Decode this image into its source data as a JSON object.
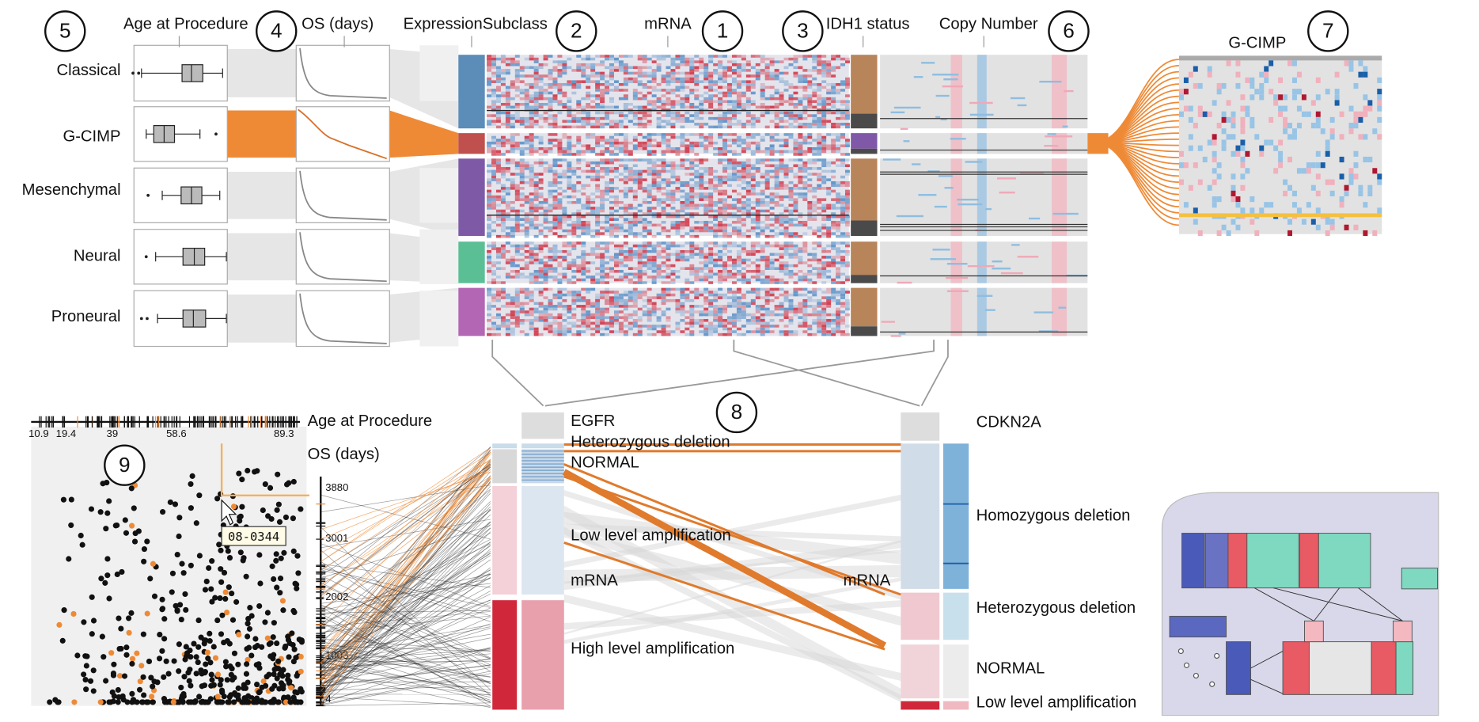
{
  "figure": {
    "column_headers": [
      "Age at Procedure",
      "OS (days)",
      "ExpressionSubclass",
      "mRNA",
      "IDH1 status",
      "Copy Number",
      "G-CIMP"
    ],
    "rows": [
      "Classical",
      "G-CIMP",
      "Mesenchymal",
      "Neural",
      "Proneural"
    ],
    "markers": [
      "5",
      "4",
      "2",
      "1",
      "3",
      "6",
      "7",
      "8",
      "9"
    ],
    "scatter": {
      "x_axis_label": "Age at Procedure",
      "y_axis_label": "OS (days)",
      "x_ticks": [
        "10.9",
        "19.4",
        "39",
        "58.6",
        "89.3"
      ],
      "y_ticks": [
        "3880",
        "3001",
        "2002",
        "1003",
        "4"
      ],
      "tooltip": "08-0344"
    },
    "egfr": {
      "title": "EGFR",
      "groups": [
        "Heterozygous deletion",
        "NORMAL",
        "Low level amplification",
        "mRNA",
        "High level amplification"
      ]
    },
    "cdkn2a": {
      "title": "CDKN2A",
      "groups": [
        "Homozygous deletion",
        "mRNA",
        "Heterozygous deletion",
        "NORMAL",
        "Low level amplification"
      ]
    }
  }
}
